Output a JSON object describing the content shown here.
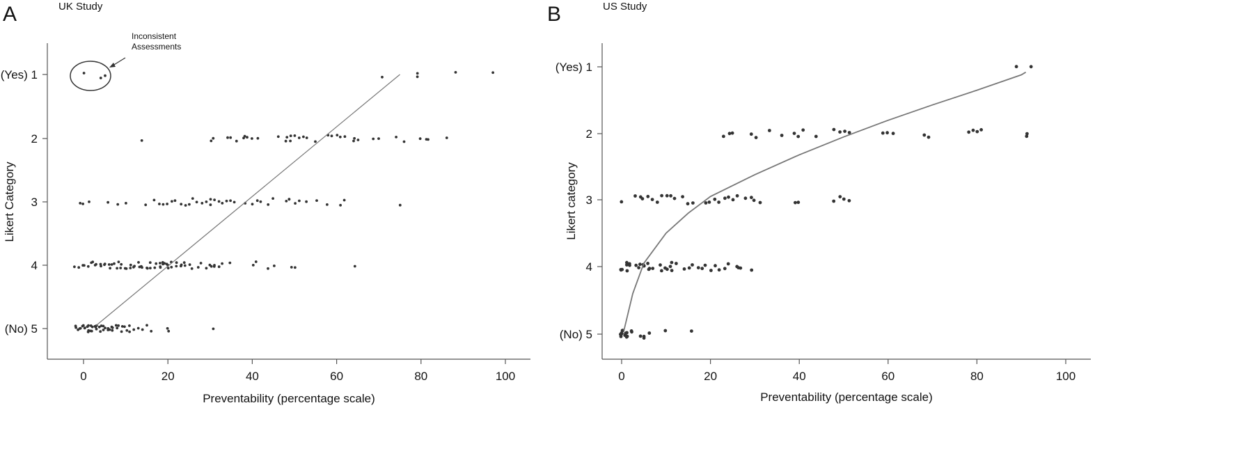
{
  "chart_data": [
    {
      "type": "scatter",
      "panel": "A",
      "title": "UK Study",
      "xlabel": "Preventability (percentage scale)",
      "ylabel": "Likert Category",
      "xlim": [
        -7,
        104
      ],
      "ylim": [
        5.5,
        0.5
      ],
      "x_ticks": [
        0,
        20,
        40,
        60,
        80,
        100
      ],
      "y_ticks": [
        1,
        2,
        3,
        4,
        5
      ],
      "y_tick_labels": [
        "(Yes) 1",
        "2",
        "3",
        "4",
        "(No) 5"
      ],
      "annotation": {
        "text_line1": "Inconsistent",
        "text_line2": "Assessments"
      },
      "fit_line": [
        [
          3,
          4.95
        ],
        [
          75,
          1.0
        ]
      ],
      "groups": [
        {
          "category": 1,
          "x": [
            0,
            4,
            5,
            71,
            79,
            79,
            88,
            97
          ]
        },
        {
          "category": 2,
          "x": [
            14,
            30,
            31,
            34,
            35,
            36,
            38,
            38,
            39,
            40,
            41,
            46,
            48,
            48,
            49,
            49,
            50,
            51,
            52,
            53,
            55,
            58,
            59,
            60,
            61,
            62,
            64,
            64,
            65,
            69,
            70,
            74,
            76,
            80,
            81,
            82,
            86
          ]
        },
        {
          "category": 3,
          "x": [
            -1,
            0,
            1,
            6,
            8,
            10,
            15,
            17,
            18,
            19,
            20,
            21,
            22,
            23,
            24,
            25,
            26,
            27,
            28,
            29,
            30,
            30,
            31,
            32,
            33,
            34,
            35,
            36,
            38,
            40,
            41,
            42,
            44,
            45,
            48,
            49,
            49,
            50,
            51,
            53,
            55,
            58,
            61,
            62,
            75
          ]
        },
        {
          "category": 4,
          "x": [
            -2,
            -1,
            0,
            0,
            1,
            2,
            2,
            3,
            3,
            4,
            4,
            5,
            5,
            6,
            6,
            7,
            7,
            8,
            8,
            9,
            9,
            10,
            10,
            11,
            11,
            12,
            12,
            13,
            13,
            14,
            14,
            15,
            15,
            16,
            16,
            17,
            17,
            18,
            18,
            18,
            19,
            19,
            19,
            20,
            20,
            20,
            21,
            21,
            22,
            22,
            23,
            23,
            24,
            24,
            25,
            26,
            27,
            28,
            29,
            30,
            30,
            31,
            31,
            32,
            33,
            35,
            40,
            41,
            44,
            45,
            49,
            50,
            64
          ]
        },
        {
          "category": 5,
          "x": [
            -2,
            -2,
            -1,
            -1,
            -1,
            0,
            0,
            0,
            0,
            1,
            1,
            1,
            1,
            2,
            2,
            2,
            2,
            3,
            3,
            3,
            3,
            4,
            4,
            4,
            5,
            5,
            5,
            6,
            6,
            6,
            7,
            7,
            7,
            8,
            8,
            8,
            9,
            9,
            10,
            10,
            11,
            11,
            12,
            13,
            14,
            15,
            16,
            20,
            20,
            31
          ]
        }
      ]
    },
    {
      "type": "scatter",
      "panel": "B",
      "title": "US Study",
      "xlabel": "Preventability (percentage scale)",
      "ylabel": "Likert category",
      "xlim": [
        -4,
        105
      ],
      "ylim": [
        5.35,
        0.5
      ],
      "x_ticks": [
        0,
        20,
        40,
        60,
        80,
        100
      ],
      "y_ticks": [
        1,
        2,
        3,
        4,
        5
      ],
      "y_tick_labels": [
        "(Yes) 1",
        "2",
        "3",
        "4",
        "(No) 5"
      ],
      "fit_line": [
        [
          0.5,
          4.95
        ],
        [
          2.5,
          4.4
        ],
        [
          5,
          3.95
        ],
        [
          10,
          3.5
        ],
        [
          15,
          3.2
        ],
        [
          20,
          2.95
        ],
        [
          30,
          2.62
        ],
        [
          40,
          2.32
        ],
        [
          50,
          2.05
        ],
        [
          60,
          1.8
        ],
        [
          70,
          1.57
        ],
        [
          80,
          1.35
        ],
        [
          90,
          1.12
        ],
        [
          91,
          1.08
        ]
      ],
      "groups": [
        {
          "category": 1,
          "x": [
            89,
            92
          ]
        },
        {
          "category": 2,
          "x": [
            23,
            24,
            25,
            29,
            30,
            33,
            36,
            39,
            40,
            41,
            44,
            48,
            49,
            50,
            51,
            59,
            60,
            61,
            68,
            69,
            78,
            79,
            80,
            81,
            91,
            91
          ]
        },
        {
          "category": 3,
          "x": [
            0,
            3,
            4,
            5,
            6,
            7,
            8,
            9,
            10,
            11,
            12,
            14,
            15,
            16,
            19,
            20,
            21,
            22,
            23,
            24,
            25,
            26,
            28,
            29,
            30,
            31,
            39,
            40,
            48,
            49,
            50,
            51
          ]
        },
        {
          "category": 4,
          "x": [
            0,
            0,
            0,
            1,
            1,
            1,
            2,
            2,
            3,
            4,
            4,
            5,
            5,
            5,
            6,
            6,
            6,
            7,
            9,
            9,
            10,
            10,
            11,
            11,
            11,
            12,
            14,
            15,
            16,
            17,
            18,
            19,
            20,
            21,
            22,
            23,
            24,
            26,
            26,
            27,
            29
          ]
        },
        {
          "category": 5,
          "x": [
            0,
            0,
            0,
            0,
            0,
            0,
            0,
            0,
            1,
            1,
            1,
            1,
            1,
            1,
            2,
            2,
            4,
            5,
            5,
            6,
            10,
            16
          ]
        }
      ]
    }
  ]
}
